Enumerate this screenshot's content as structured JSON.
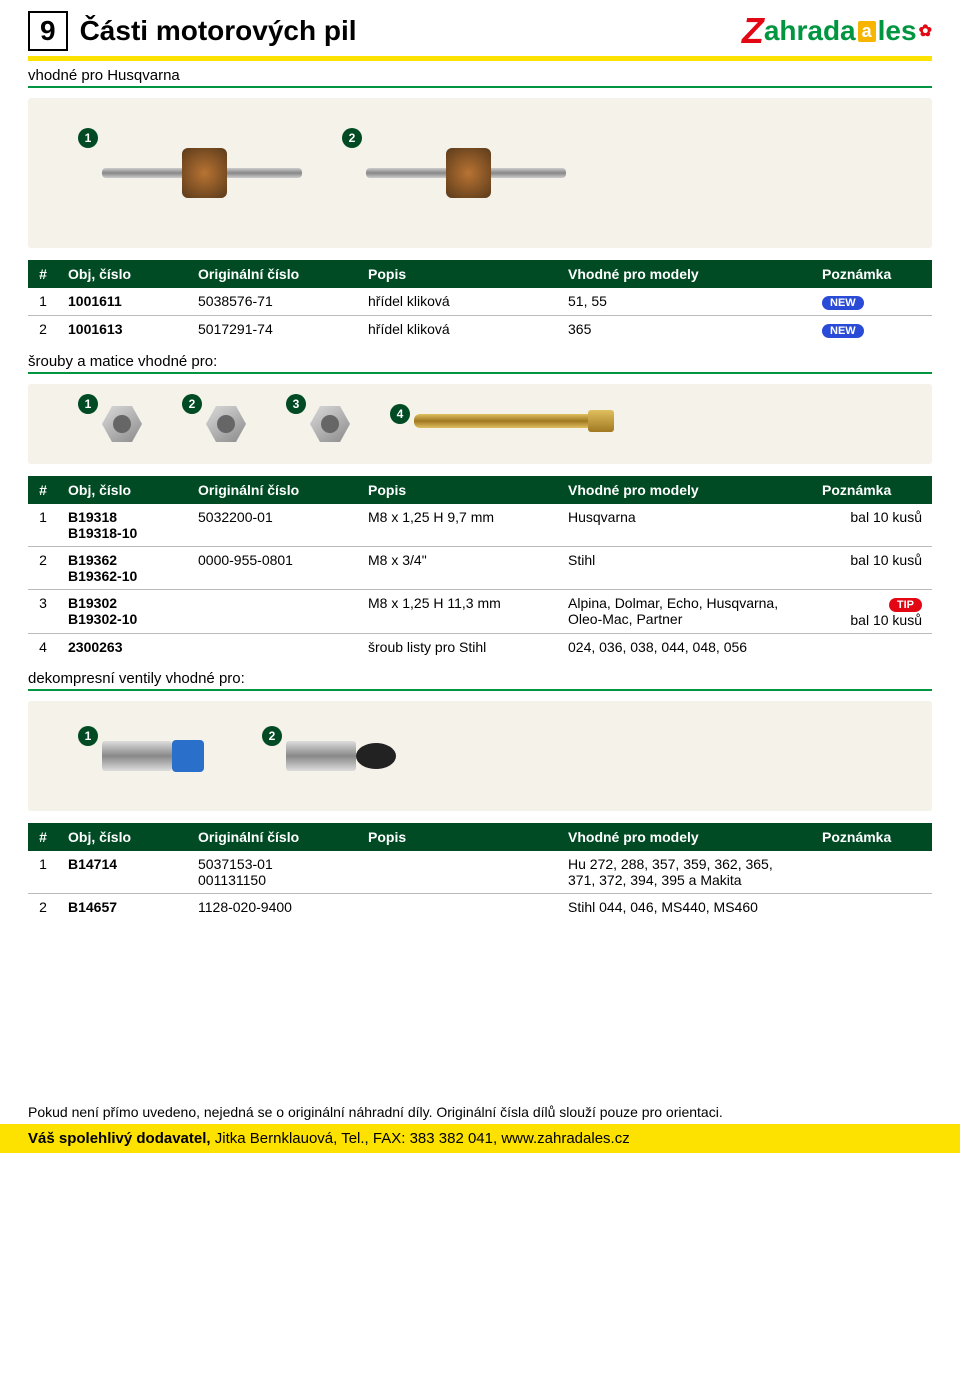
{
  "page_number": "9",
  "page_title": "Části motorových pil",
  "subtitle": "vhodné pro Husqvarna",
  "logo": {
    "z": "Z",
    "ahrada": "ahrada",
    "a": "a",
    "les": "les"
  },
  "colors": {
    "header_green": "#004b23",
    "accent_yellow": "#fde200",
    "underline_green": "#009640",
    "pill_new": "#2a4bd7",
    "pill_tip": "#e30613",
    "logo_red": "#e30613",
    "logo_green": "#009640",
    "logo_orange": "#f7b500",
    "panel_bg": "#f5f2ea"
  },
  "table_headers": {
    "hash": "#",
    "obj": "Obj, číslo",
    "orig": "Originální číslo",
    "popis": "Popis",
    "model": "Vhodné pro modely",
    "pozn": "Poznámka"
  },
  "pill_labels": {
    "new": "NEW",
    "tip": "TIP"
  },
  "table1": {
    "rows": [
      {
        "n": "1",
        "obj": "1001611",
        "orig": "5038576-71",
        "popis": "hřídel kliková",
        "model": "51, 55",
        "pill": "new"
      },
      {
        "n": "2",
        "obj": "1001613",
        "orig": "5017291-74",
        "popis": "hřídel kliková",
        "model": "365",
        "pill": "new"
      }
    ]
  },
  "section2_label": "šrouby a matice vhodné pro:",
  "table2": {
    "rows": [
      {
        "n": "1",
        "obj1": "B19318",
        "obj2": "B19318-10",
        "orig": "5032200-01",
        "popis": "M8 x 1,25 H 9,7 mm",
        "model": "Husqvarna",
        "pozn": "bal 10 kusů"
      },
      {
        "n": "2",
        "obj1": "B19362",
        "obj2": "B19362-10",
        "orig": "0000-955-0801",
        "popis": "M8 x 3/4\"",
        "model": "Stihl",
        "pozn": "bal 10 kusů"
      },
      {
        "n": "3",
        "obj1": "B19302",
        "obj2": "B19302-10",
        "orig": "",
        "popis": "M8 x 1,25 H 11,3 mm",
        "model": "Alpina, Dolmar, Echo, Husqvarna, Oleo-Mac, Partner",
        "pill": "tip",
        "pozn": "bal 10 kusů"
      },
      {
        "n": "4",
        "obj1": "2300263",
        "obj2": "",
        "orig": "",
        "popis": "šroub listy pro Stihl",
        "model": "024, 036, 038, 044, 048, 056",
        "pozn": ""
      }
    ]
  },
  "section3_label": "dekompresní ventily vhodné pro:",
  "table3": {
    "rows": [
      {
        "n": "1",
        "obj": "B14714",
        "orig1": "5037153-01",
        "orig2": "001131150",
        "popis": "",
        "model": "Hu 272, 288, 357, 359, 362, 365, 371, 372, 394, 395 a Makita",
        "pozn": ""
      },
      {
        "n": "2",
        "obj": "B14657",
        "orig1": "1128-020-9400",
        "orig2": "",
        "popis": "",
        "model": "Stihl 044, 046, MS440, MS460",
        "pozn": ""
      }
    ]
  },
  "footer_note": "Pokud není přímo uvedeno, nejedná se o originální náhradní díly. Originální čísla dílů slouží pouze pro orientaci.",
  "footer_bar_bold": "Váš spolehlivý dodavatel,",
  "footer_bar_rest": " Jitka Bernklauová, Tel., FAX: 383 382 041, www.zahradales.cz",
  "illus_badges": {
    "b1": "1",
    "b2": "2",
    "b3": "3",
    "b4": "4"
  }
}
